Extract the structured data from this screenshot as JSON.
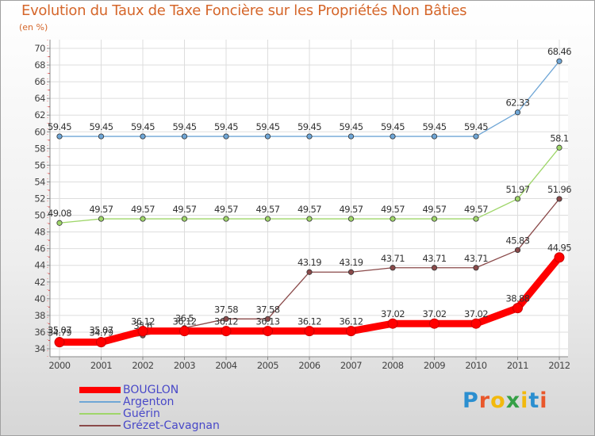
{
  "title": "Evolution du Taux de Taxe Foncière sur les Propriétés Non Bâties",
  "unit": "(en %)",
  "logo": {
    "text": "Proxiti",
    "colors": [
      "#2b8fd0",
      "#e9572b",
      "#f2b90d",
      "#35a046",
      "#f2b90d",
      "#2b8fd0",
      "#e9572b"
    ]
  },
  "chart_data": {
    "type": "line",
    "title": "Evolution du Taux de Taxe Foncière sur les Propriétés Non Bâties",
    "ylabel": "(en %)",
    "xlabel": "",
    "x": [
      "2000",
      "2001",
      "2002",
      "2003",
      "2004",
      "2005",
      "2006",
      "2007",
      "2008",
      "2009",
      "2010",
      "2011",
      "2012"
    ],
    "ylim": [
      34,
      70
    ],
    "yticks": [
      34,
      36,
      38,
      40,
      42,
      44,
      46,
      48,
      50,
      52,
      54,
      56,
      58,
      60,
      62,
      64,
      66,
      68,
      70
    ],
    "grid": true,
    "legend": "bottom-left",
    "series": [
      {
        "name": "Argenton",
        "color": "#6fa6d6",
        "values": [
          59.45,
          59.45,
          59.45,
          59.45,
          59.45,
          59.45,
          59.45,
          59.45,
          59.45,
          59.45,
          59.45,
          62.33,
          68.46
        ],
        "labels": [
          "59.45",
          "59.45",
          "59.45",
          "59.45",
          "59.45",
          "59.45",
          "59.45",
          "59.45",
          "59.45",
          "59.45",
          "59.45",
          "62.33",
          "68.46"
        ]
      },
      {
        "name": "Guérin",
        "color": "#9fd66a",
        "values": [
          49.08,
          49.57,
          49.57,
          49.57,
          49.57,
          49.57,
          49.57,
          49.57,
          49.57,
          49.57,
          49.57,
          51.97,
          58.1
        ],
        "labels": [
          "49.08",
          "49.57",
          "49.57",
          "49.57",
          "49.57",
          "49.57",
          "49.57",
          "49.57",
          "49.57",
          "49.57",
          "49.57",
          "51.97",
          "58.1"
        ]
      },
      {
        "name": "Grézet-Cavagnan",
        "color": "#8a4a4a",
        "values": [
          35.07,
          35.07,
          35.6,
          36.5,
          37.58,
          37.58,
          43.19,
          43.19,
          43.71,
          43.71,
          43.71,
          45.83,
          51.96
        ],
        "labels": [
          "35.07",
          "35.07",
          "35.6",
          "36.5",
          "37.58",
          "37.58",
          "43.19",
          "43.19",
          "43.71",
          "43.71",
          "43.71",
          "45.83",
          "51.96"
        ]
      },
      {
        "name": "BOUGLON",
        "color": "#ff0000",
        "values": [
          34.79,
          34.79,
          36.12,
          36.12,
          36.12,
          36.13,
          36.12,
          36.12,
          37.02,
          37.02,
          37.02,
          38.88,
          44.95
        ],
        "labels": [
          "34.79",
          "34.79",
          "36.12",
          "36.12",
          "36.12",
          "36.13",
          "36.12",
          "36.12",
          "37.02",
          "37.02",
          "37.02",
          "38.88",
          "44.95"
        ]
      }
    ],
    "legend_entries": [
      {
        "name": "BOUGLON",
        "color": "#ff0000",
        "weight": "thick"
      },
      {
        "name": "Argenton",
        "color": "#6fa6d6",
        "weight": "thin"
      },
      {
        "name": "Guérin",
        "color": "#9fd66a",
        "weight": "thin"
      },
      {
        "name": "Grézet-Cavagnan",
        "color": "#8a4a4a",
        "weight": "thin"
      }
    ]
  }
}
